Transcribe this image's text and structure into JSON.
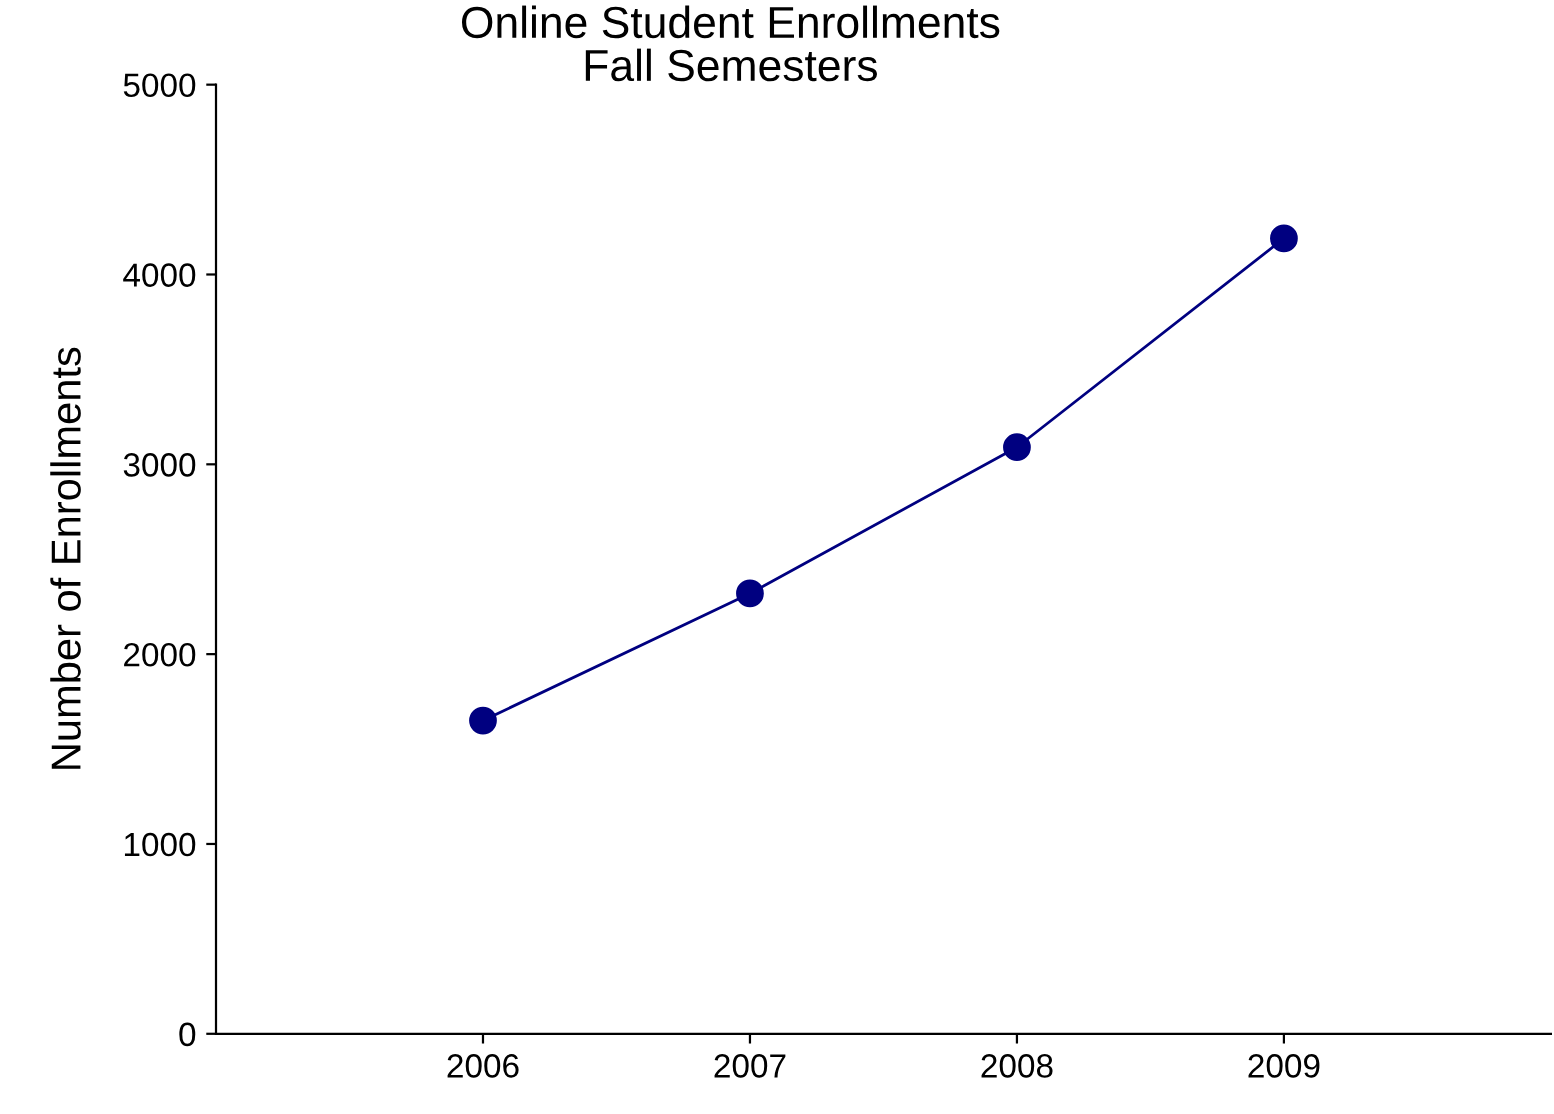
{
  "chart_data": {
    "type": "line",
    "title": "Online Student Enrollments\nFall Semesters",
    "ylabel": "Number of Enrollments",
    "x": [
      2006,
      2007,
      2008,
      2009
    ],
    "series": [
      {
        "color": "#000080",
        "values": [
          1650,
          2320,
          3090,
          4190
        ]
      }
    ],
    "xlim": [
      2005,
      2010
    ],
    "xticks": [
      2006,
      2007,
      2008,
      2009
    ],
    "ylim": [
      0,
      5000
    ],
    "yticks": [
      0,
      1000,
      2000,
      3000,
      4000,
      5000
    ],
    "marker": "circle",
    "line_style": "solid",
    "grid": false
  }
}
